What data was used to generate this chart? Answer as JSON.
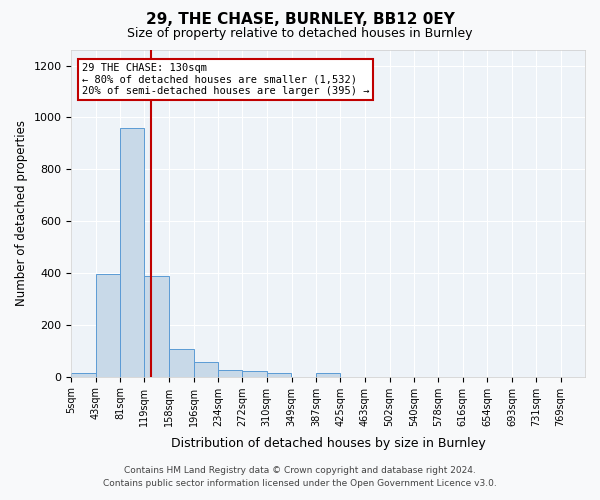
{
  "title1": "29, THE CHASE, BURNLEY, BB12 0EY",
  "title2": "Size of property relative to detached houses in Burnley",
  "xlabel": "Distribution of detached houses by size in Burnley",
  "ylabel": "Number of detached properties",
  "annotation_line1": "29 THE CHASE: 130sqm",
  "annotation_line2": "← 80% of detached houses are smaller (1,532)",
  "annotation_line3": "20% of semi-detached houses are larger (395) →",
  "property_size_sqm": 130,
  "bin_labels": [
    "5sqm",
    "43sqm",
    "81sqm",
    "119sqm",
    "158sqm",
    "196sqm",
    "234sqm",
    "272sqm",
    "310sqm",
    "349sqm",
    "387sqm",
    "425sqm",
    "463sqm",
    "502sqm",
    "540sqm",
    "578sqm",
    "616sqm",
    "654sqm",
    "693sqm",
    "731sqm",
    "769sqm"
  ],
  "bin_edges": [
    5,
    43,
    81,
    119,
    158,
    196,
    234,
    272,
    310,
    349,
    387,
    425,
    463,
    502,
    540,
    578,
    616,
    654,
    693,
    731,
    769
  ],
  "bar_values": [
    15,
    395,
    960,
    390,
    105,
    55,
    25,
    20,
    13,
    0,
    13,
    0,
    0,
    0,
    0,
    0,
    0,
    0,
    0,
    0
  ],
  "bar_color": "#c8d9e8",
  "bar_edge_color": "#5b9bd5",
  "vline_x": 130,
  "vline_color": "#c00000",
  "annotation_box_color": "#ffffff",
  "annotation_box_edge": "#c00000",
  "background_color": "#eef3f8",
  "grid_color": "#ffffff",
  "ylim": [
    0,
    1260
  ],
  "yticks": [
    0,
    200,
    400,
    600,
    800,
    1000,
    1200
  ],
  "footer_line1": "Contains HM Land Registry data © Crown copyright and database right 2024.",
  "footer_line2": "Contains public sector information licensed under the Open Government Licence v3.0."
}
